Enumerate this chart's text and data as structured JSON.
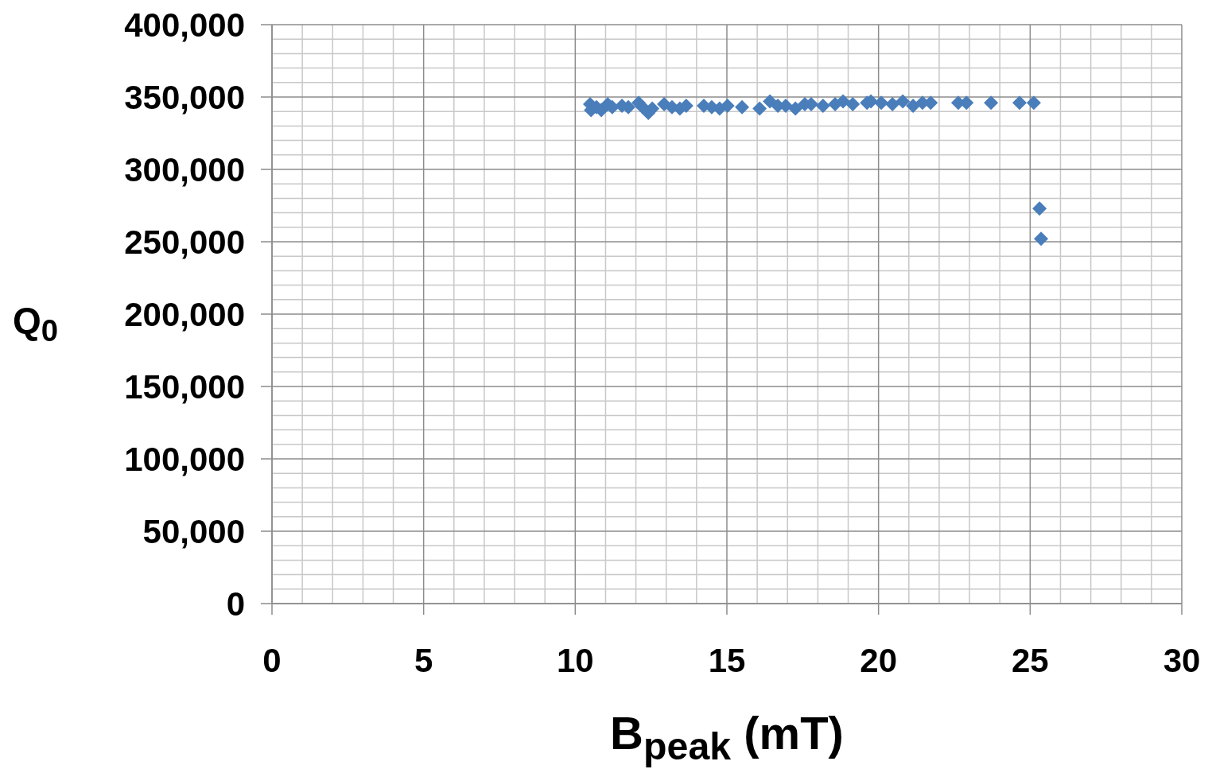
{
  "chart_data": {
    "type": "scatter",
    "xlabel": "B$_{peak}$ (mT)",
    "ylabel": "Q$_{0}$",
    "marker": "diamond",
    "grid": true,
    "xlim": [
      0,
      30
    ],
    "xticks": [
      0,
      5,
      10,
      15,
      20,
      25,
      30
    ],
    "ylim": [
      0,
      400000
    ],
    "yticks": [
      {
        "value": 0,
        "label": "0"
      },
      {
        "value": 50000,
        "label": "50,000"
      },
      {
        "value": 100000,
        "label": "100,000"
      },
      {
        "value": 150000,
        "label": "150,000"
      },
      {
        "value": 200000,
        "label": "200,000"
      },
      {
        "value": 250000,
        "label": "250,000"
      },
      {
        "value": 300000,
        "label": "300,000"
      },
      {
        "value": 350000,
        "label": "350,000"
      },
      {
        "value": 400000,
        "label": "400,000"
      }
    ],
    "series": [
      {
        "color": "#4a7ebb",
        "x": [
          10.49,
          10.52,
          10.7,
          10.86,
          11.07,
          11.22,
          11.54,
          11.75,
          12.09,
          12.22,
          12.41,
          12.54,
          12.93,
          13.19,
          13.45,
          13.66,
          14.24,
          14.5,
          14.76,
          15.02,
          15.5,
          16.08,
          16.42,
          16.68,
          16.94,
          17.26,
          17.57,
          17.78,
          18.17,
          18.57,
          18.83,
          19.15,
          19.62,
          19.75,
          20.09,
          20.46,
          20.8,
          21.14,
          21.45,
          21.72,
          22.63,
          22.9,
          23.71,
          24.65,
          25.12,
          25.31,
          25.36
        ],
        "values": [
          345000,
          341000,
          343000,
          341000,
          345000,
          343000,
          344000,
          343000,
          346000,
          343000,
          339000,
          342000,
          345000,
          343000,
          342000,
          344000,
          344000,
          343000,
          342000,
          344000,
          343000,
          342000,
          347000,
          344000,
          344000,
          342000,
          345000,
          345000,
          344000,
          345000,
          347000,
          345000,
          346000,
          347000,
          346000,
          345000,
          347000,
          344000,
          346000,
          346000,
          346000,
          346000,
          346000,
          346000,
          346000,
          273000,
          252000
        ]
      }
    ]
  }
}
